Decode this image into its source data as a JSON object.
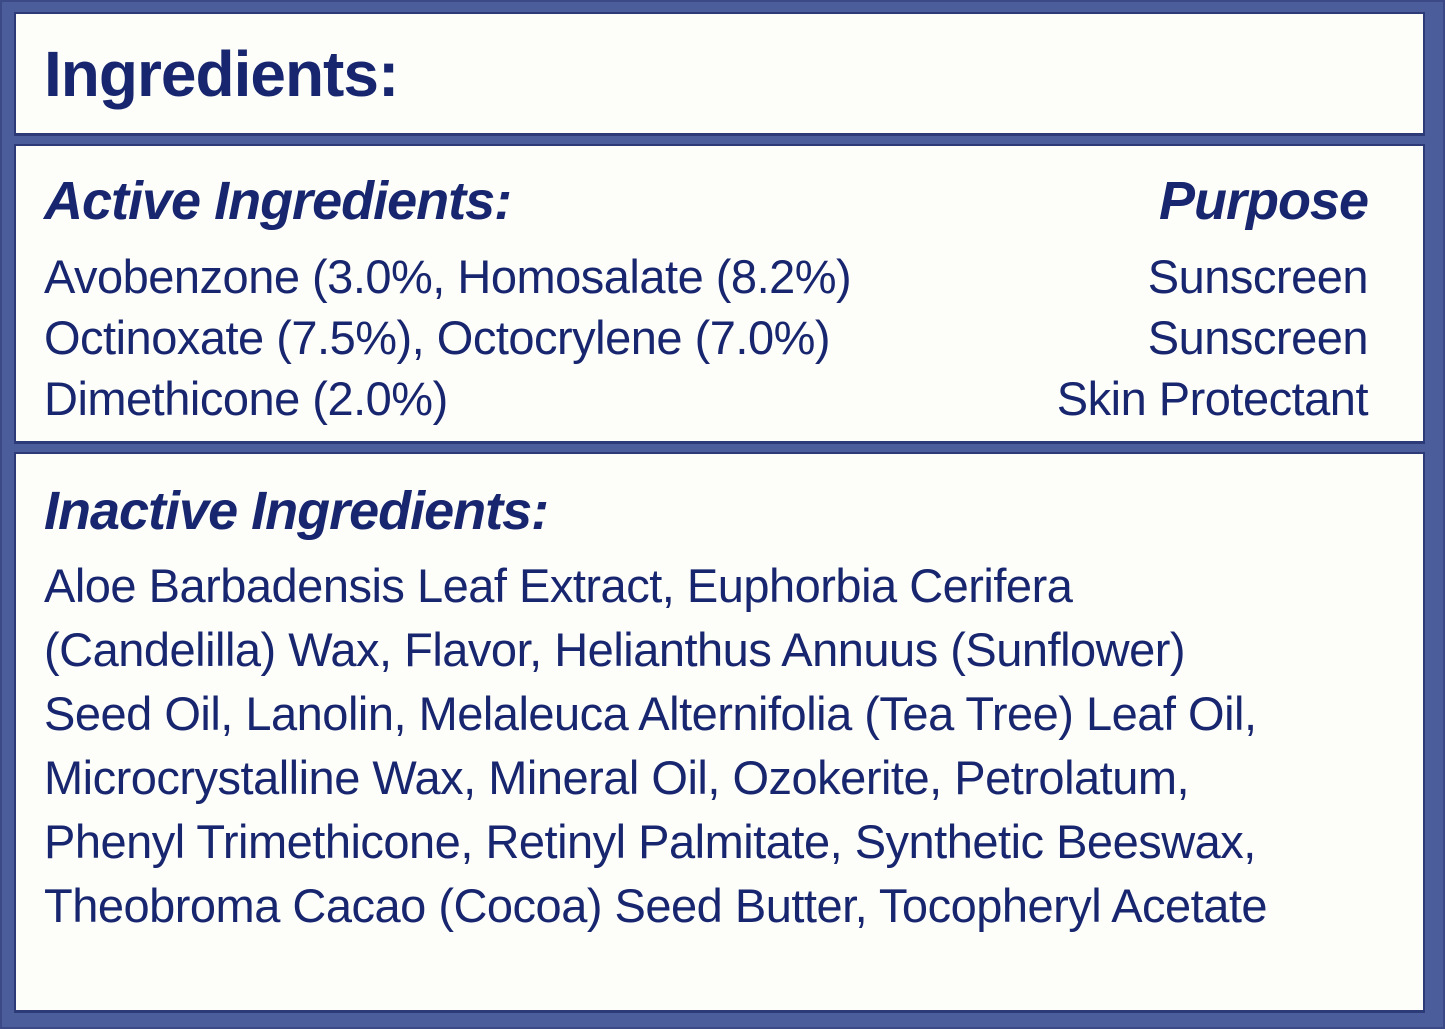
{
  "label": {
    "title": "Ingredients:",
    "active": {
      "heading": "Active Ingredients:",
      "purpose_heading": "Purpose",
      "rows": [
        {
          "ingredient": "Avobenzone (3.0%, Homosalate (8.2%)",
          "purpose": "Sunscreen"
        },
        {
          "ingredient": "Octinoxate (7.5%), Octocrylene (7.0%)",
          "purpose": "Sunscreen"
        },
        {
          "ingredient": "Dimethicone (2.0%)",
          "purpose": "Skin Protectant"
        }
      ]
    },
    "inactive": {
      "heading": "Inactive Ingredients:",
      "lines": [
        "Aloe Barbadensis Leaf Extract, Euphorbia Cerifera",
        "(Candelilla) Wax, Flavor, Helianthus Annuus (Sunflower)",
        "Seed Oil, Lanolin, Melaleuca Alternifolia (Tea Tree) Leaf Oil,",
        "Microcrystalline Wax, Mineral Oil, Ozokerite, Petrolatum,",
        "Phenyl Trimethicone, Retinyl Palmitate, Synthetic Beeswax,",
        "Theobroma Cacao (Cocoa) Seed Butter, Tocopheryl Acetate"
      ],
      "full_text": "Aloe Barbadensis Leaf Extract, Euphorbia Cerifera (Candelilla) Wax, Flavor, Helianthus Annuus (Sunflower) Seed Oil, Lanolin, Melaleuca Alternifolia (Tea Tree) Leaf Oil, Microcrystalline Wax, Mineral Oil, Ozokerite, Petrolatum, Phenyl Trimethicone, Retinyl Palmitate, Synthetic Beeswax, Theobroma Cacao (Cocoa) Seed Butter, Tocopheryl Acetate"
    },
    "colors": {
      "frame_blue": "#4c5d9c",
      "frame_edge": "#3b4a86",
      "panel_background": "#fdfdfa",
      "panel_border": "#2c3a78",
      "text_navy": "#17266e"
    }
  }
}
